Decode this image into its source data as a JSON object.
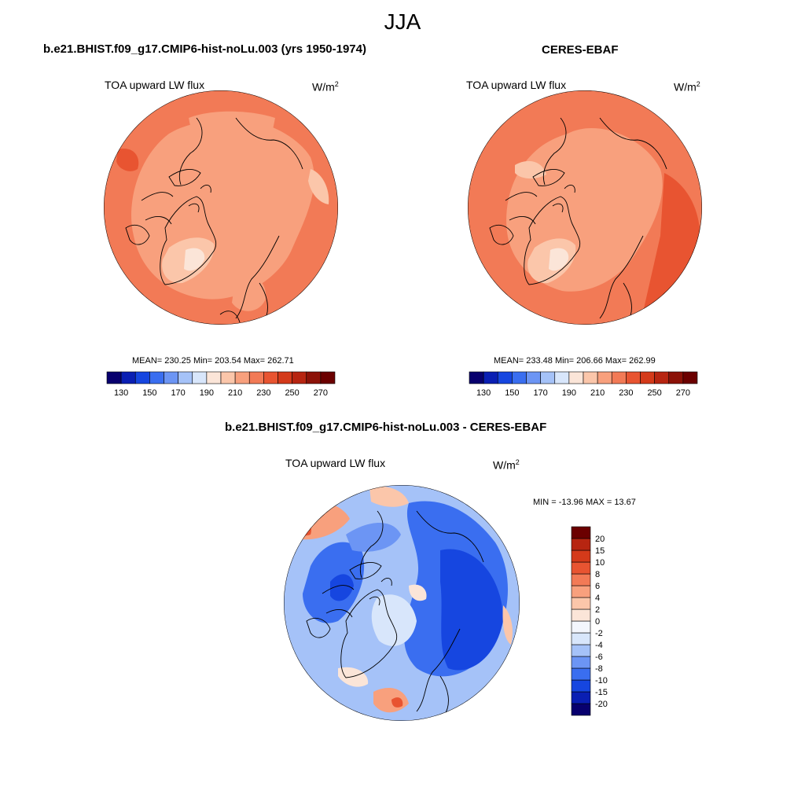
{
  "figure": {
    "season": "JJA"
  },
  "panels": [
    {
      "title": "b.e21.BHIST.f09_g17.CMIP6-hist-noLu.003 (yrs 1950-1974)",
      "variable": "TOA upward LW flux",
      "units_base": "W/m",
      "units_exp": "2",
      "stats": "MEAN= 230.25  Min= 203.54  Max= 262.71",
      "levels": [
        130,
        140,
        150,
        160,
        170,
        180,
        190,
        200,
        210,
        220,
        230,
        240,
        250,
        260,
        270
      ],
      "tick_labels": [
        "130",
        "150",
        "170",
        "190",
        "210",
        "230",
        "250",
        "270"
      ],
      "colors": [
        "#08006e",
        "#0a1fb3",
        "#1646e0",
        "#3a6ef0",
        "#6c95f4",
        "#a5c2f8",
        "#d8e6fb",
        "#fbe5d8",
        "#fbc6aa",
        "#f8a07d",
        "#f27a56",
        "#e85431",
        "#d43a1a",
        "#b72511",
        "#8c1208",
        "#6b0000"
      ]
    },
    {
      "title": "CERES-EBAF",
      "variable": "TOA upward LW flux",
      "units_base": "W/m",
      "units_exp": "2",
      "stats": "MEAN= 233.48  Min= 206.66  Max= 262.99",
      "levels": [
        130,
        140,
        150,
        160,
        170,
        180,
        190,
        200,
        210,
        220,
        230,
        240,
        250,
        260,
        270
      ],
      "tick_labels": [
        "130",
        "150",
        "170",
        "190",
        "210",
        "230",
        "250",
        "270"
      ],
      "colors": [
        "#08006e",
        "#0a1fb3",
        "#1646e0",
        "#3a6ef0",
        "#6c95f4",
        "#a5c2f8",
        "#d8e6fb",
        "#fbe5d8",
        "#fbc6aa",
        "#f8a07d",
        "#f27a56",
        "#e85431",
        "#d43a1a",
        "#b72511",
        "#8c1208",
        "#6b0000"
      ]
    },
    {
      "title": "b.e21.BHIST.f09_g17.CMIP6-hist-noLu.003 - CERES-EBAF",
      "variable": "TOA upward LW flux",
      "units_base": "W/m",
      "units_exp": "2",
      "stats": "MIN = -13.96 MAX =  13.67",
      "levels": [
        -20,
        -15,
        -10,
        -8,
        -6,
        -4,
        -2,
        0,
        2,
        4,
        6,
        8,
        10,
        15,
        20
      ],
      "tick_labels": [
        "-20",
        "-15",
        "-10",
        "-8",
        "-6",
        "-4",
        "-2",
        "0",
        "2",
        "4",
        "6",
        "8",
        "10",
        "15",
        "20"
      ],
      "colors": [
        "#08006e",
        "#0a1fb3",
        "#1646e0",
        "#3a6ef0",
        "#6c95f4",
        "#a5c2f8",
        "#d8e6fb",
        "#f3f6fd",
        "#fbe5d8",
        "#fbc6aa",
        "#f8a07d",
        "#f27a56",
        "#e85431",
        "#d43a1a",
        "#b72511",
        "#6b0000"
      ]
    }
  ]
}
